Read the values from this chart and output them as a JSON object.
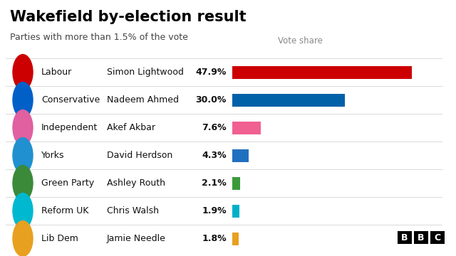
{
  "title": "Wakefield by-election result",
  "subtitle": "Parties with more than 1.5% of the vote",
  "col_header": "Vote share",
  "parties": [
    "Labour",
    "Conservative",
    "Independent",
    "Yorks",
    "Green Party",
    "Reform UK",
    "Lib Dem"
  ],
  "candidates": [
    "Simon Lightwood",
    "Nadeem Ahmed",
    "Akef Akbar",
    "David Herdson",
    "Ashley Routh",
    "Chris Walsh",
    "Jamie Needle"
  ],
  "values": [
    47.9,
    30.0,
    7.6,
    4.3,
    2.1,
    1.9,
    1.8
  ],
  "labels": [
    "47.9%",
    "30.0%",
    "7.6%",
    "4.3%",
    "2.1%",
    "1.9%",
    "1.8%"
  ],
  "bar_colors": [
    "#cc0000",
    "#0060a8",
    "#f06090",
    "#2070c0",
    "#3a9a3a",
    "#00b0c8",
    "#e8a020"
  ],
  "icon_colors": [
    "#cc0000",
    "#0060c8",
    "#e060a0",
    "#2090d0",
    "#3a8a3a",
    "#00b8d0",
    "#e8a020"
  ],
  "bg_color": "#ffffff",
  "title_color": "#000000",
  "subtitle_color": "#444444",
  "header_color": "#888888",
  "divider_color": "#dddddd",
  "bar_max": 52,
  "figure_width": 6.4,
  "figure_height": 3.6,
  "title_fontsize": 15,
  "subtitle_fontsize": 9,
  "label_fontsize": 9,
  "pct_fontsize": 9
}
